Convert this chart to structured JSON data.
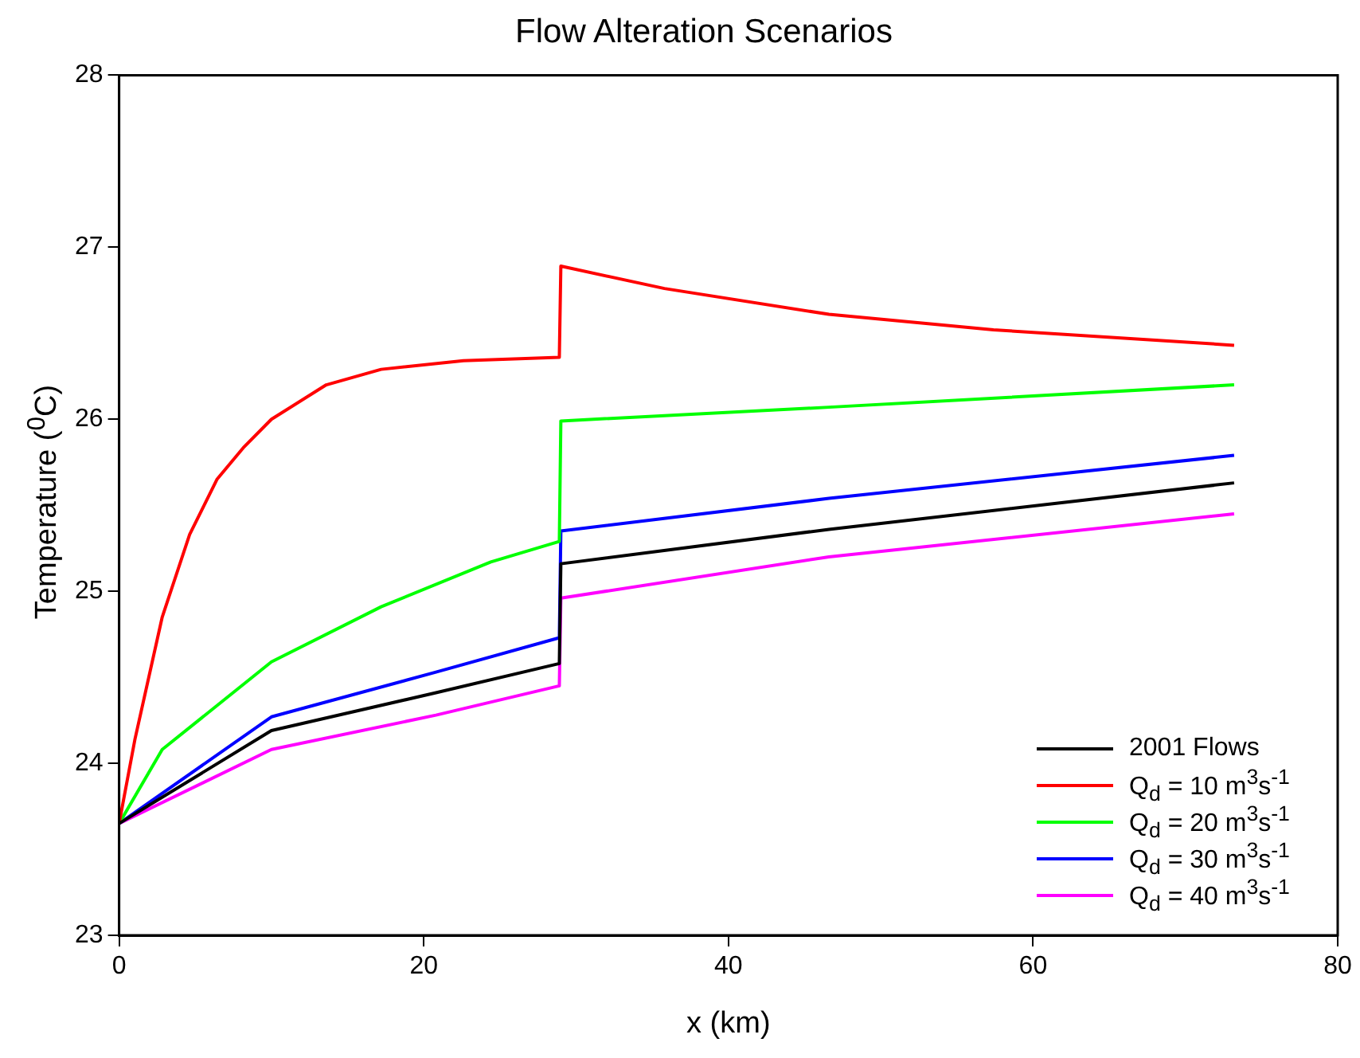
{
  "chart_data": {
    "type": "line",
    "title": "Flow Alteration Scenarios",
    "xlabel": "x (km)",
    "ylabel": "Temperature ($^{0}$C)",
    "xlim": [
      0,
      80
    ],
    "xticks": [
      0,
      20,
      40,
      60,
      80
    ],
    "ylim": [
      23,
      28
    ],
    "yticks": [
      23,
      24,
      25,
      26,
      27,
      28
    ],
    "grid": false,
    "legend": "bottom right",
    "marker": "none",
    "line_style": "solid",
    "series": [
      {
        "name": "2001 Flows",
        "color": "#000000",
        "x": [
          0,
          10,
          20.8,
          28.9,
          29,
          46.6,
          73.2
        ],
        "values": [
          23.65,
          24.19,
          24.41,
          24.58,
          25.16,
          25.36,
          25.63
        ]
      },
      {
        "name": "Q$_{d}$ = 10 m$^{3}$s$^{-1}$",
        "color": "#ff0000",
        "x": [
          0,
          1.04,
          2.83,
          4.63,
          6.42,
          8.21,
          10,
          13.6,
          17.2,
          22.6,
          28.9,
          29,
          35.8,
          46.6,
          57.4,
          73.2
        ],
        "values": [
          23.65,
          24.14,
          24.85,
          25.33,
          25.65,
          25.84,
          26.0,
          26.2,
          26.29,
          26.34,
          26.36,
          26.89,
          26.76,
          26.61,
          26.52,
          26.43
        ]
      },
      {
        "name": "Q$_{d}$ = 20 m$^{3}$s$^{-1}$",
        "color": "#00ff00",
        "x": [
          0,
          2.83,
          10,
          17.2,
          24.4,
          28.9,
          29,
          46.6,
          73.2
        ],
        "values": [
          23.65,
          24.08,
          24.59,
          24.91,
          25.17,
          25.29,
          25.99,
          26.07,
          26.2
        ]
      },
      {
        "name": "Q$_{d}$ = 30 m$^{3}$s$^{-1}$",
        "color": "#0000ff",
        "x": [
          0,
          10,
          20.8,
          28.9,
          29,
          46.6,
          73.2
        ],
        "values": [
          23.65,
          24.27,
          24.53,
          24.73,
          25.35,
          25.54,
          25.79
        ]
      },
      {
        "name": "Q$_{d}$ = 40 m$^{3}$s$^{-1}$",
        "color": "#ff00ff",
        "x": [
          0,
          10,
          20.8,
          28.9,
          29,
          46.6,
          73.2
        ],
        "values": [
          23.65,
          24.08,
          24.28,
          24.45,
          24.96,
          25.2,
          25.45
        ]
      }
    ]
  }
}
